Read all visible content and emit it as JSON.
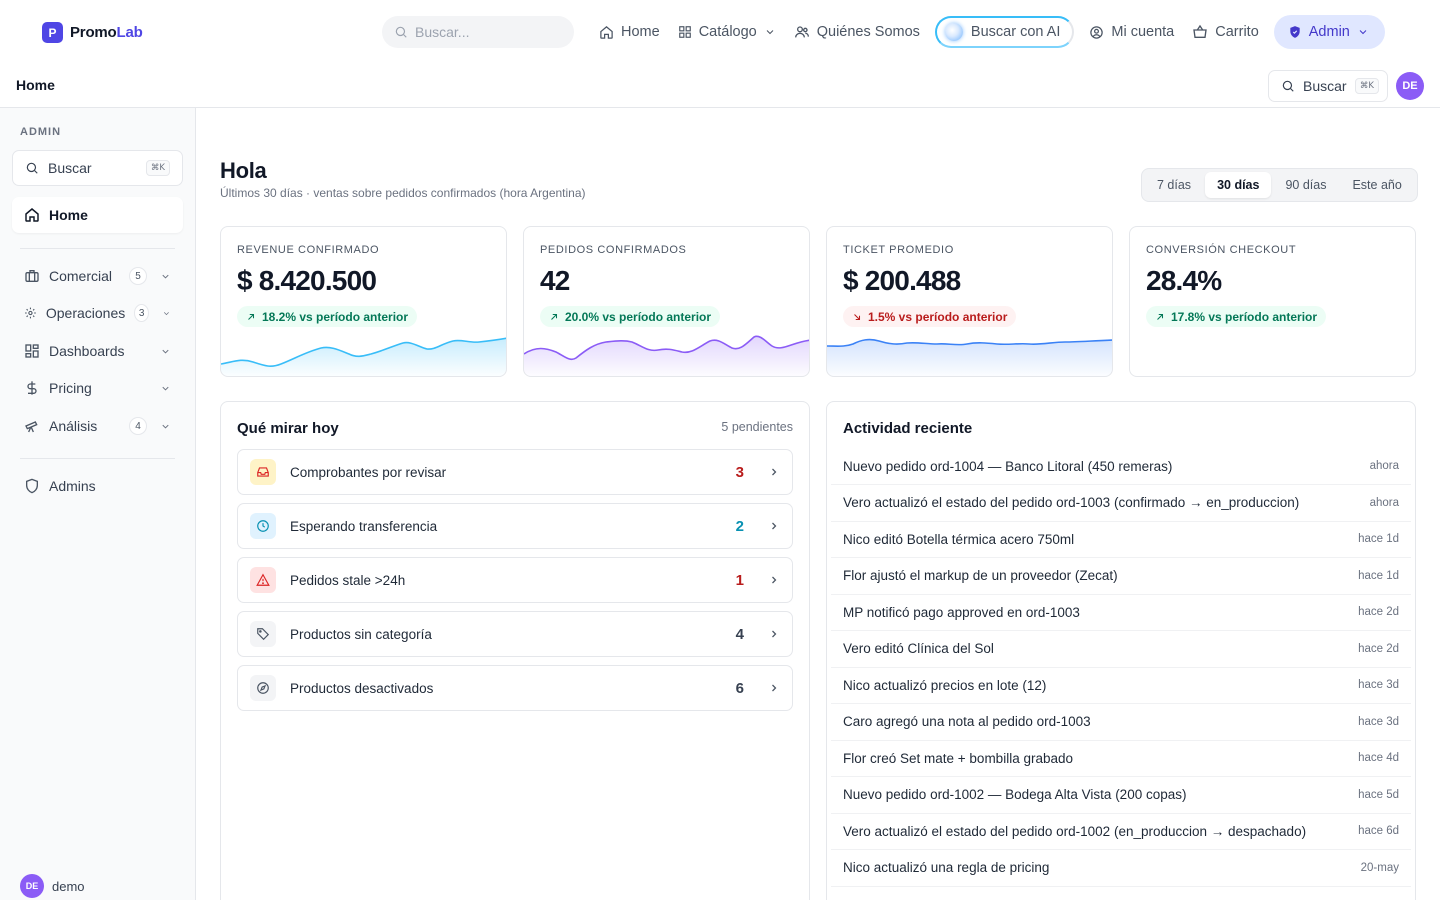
{
  "brand": {
    "mark": "P",
    "name_main": "Promo",
    "name_accent": "Lab"
  },
  "topnav": {
    "search_placeholder": "Buscar...",
    "home": "Home",
    "catalog": "Catálogo",
    "about": "Quiénes Somos",
    "ai_search": "Buscar con AI",
    "account": "Mi cuenta",
    "cart": "Carrito",
    "admin": "Admin"
  },
  "header": {
    "title": "Home",
    "search_label": "Buscar",
    "search_kbd": "⌘K",
    "avatar": "DE"
  },
  "sidebar": {
    "section": "ADMIN",
    "search_label": "Buscar",
    "search_kbd": "⌘K",
    "items": [
      {
        "label": "Home"
      },
      {
        "label": "Comercial",
        "count": "5"
      },
      {
        "label": "Operaciones",
        "count": "3"
      },
      {
        "label": "Dashboards"
      },
      {
        "label": "Pricing"
      },
      {
        "label": "Análisis",
        "count": "4"
      },
      {
        "label": "Admins"
      }
    ],
    "user": {
      "avatar": "DE",
      "name": "demo"
    }
  },
  "main": {
    "greeting": "Hola",
    "subtitle": "Últimos 30 días · ventas sobre pedidos confirmados (hora Argentina)",
    "ranges": [
      "7 días",
      "30 días",
      "90 días",
      "Este año"
    ],
    "active_range": "30 días",
    "kpis": [
      {
        "label": "REVENUE CONFIRMADO",
        "value": "$ 8.420.500",
        "delta": "18.2% vs período anterior",
        "trend": "up",
        "color": "#38bdf8"
      },
      {
        "label": "PEDIDOS CONFIRMADOS",
        "value": "42",
        "delta": "20.0% vs período anterior",
        "trend": "up",
        "color": "#8b5cf6"
      },
      {
        "label": "TICKET PROMEDIO",
        "value": "$ 200.488",
        "delta": "1.5% vs período anterior",
        "trend": "down",
        "color": "#3b82f6"
      },
      {
        "label": "CONVERSIÓN CHECKOUT",
        "value": "28.4%",
        "delta": "17.8% vs período anterior",
        "trend": "up",
        "color": ""
      }
    ],
    "todo": {
      "title": "Qué mirar hoy",
      "pending": "5 pendientes",
      "items": [
        {
          "label": "Comprobantes por revisar",
          "count": "3",
          "icon": "inbox-icon",
          "color": "#b91c1c",
          "bg": "#fef3c7"
        },
        {
          "label": "Esperando transferencia",
          "count": "2",
          "icon": "clock-icon",
          "color": "#0891b2",
          "bg": "#e0f2fe"
        },
        {
          "label": "Pedidos stale >24h",
          "count": "1",
          "icon": "alert-icon",
          "color": "#b91c1c",
          "bg": "#fee2e2"
        },
        {
          "label": "Productos sin categoría",
          "count": "4",
          "icon": "tag-icon",
          "color": "#374151",
          "bg": "#f3f4f6"
        },
        {
          "label": "Productos desactivados",
          "count": "6",
          "icon": "compass-icon",
          "color": "#374151",
          "bg": "#f3f4f6"
        }
      ]
    },
    "activity": {
      "title": "Actividad reciente",
      "items": [
        {
          "text": "Nuevo pedido ord-1004 — Banco Litoral (450 remeras)",
          "time": "ahora"
        },
        {
          "text": "Vero actualizó el estado del pedido ord-1003 (confirmado → en_produccion)",
          "time": "ahora"
        },
        {
          "text": "Nico editó Botella térmica acero 750ml",
          "time": "hace 1d"
        },
        {
          "text": "Flor ajustó el markup de un proveedor (Zecat)",
          "time": "hace 1d"
        },
        {
          "text": "MP notificó pago approved en ord-1003",
          "time": "hace 2d"
        },
        {
          "text": "Vero editó Clínica del Sol",
          "time": "hace 2d"
        },
        {
          "text": "Nico actualizó precios en lote (12)",
          "time": "hace 3d"
        },
        {
          "text": "Caro agregó una nota al pedido ord-1003",
          "time": "hace 3d"
        },
        {
          "text": "Flor creó Set mate + bombilla grabado",
          "time": "hace 4d"
        },
        {
          "text": "Nuevo pedido ord-1002 — Bodega Alta Vista (200 copas)",
          "time": "hace 5d"
        },
        {
          "text": "Vero actualizó el estado del pedido ord-1002 (en_produccion → despachado)",
          "time": "hace 6d"
        },
        {
          "text": "Nico actualizó una regla de pricing",
          "time": "20-may"
        }
      ]
    }
  }
}
